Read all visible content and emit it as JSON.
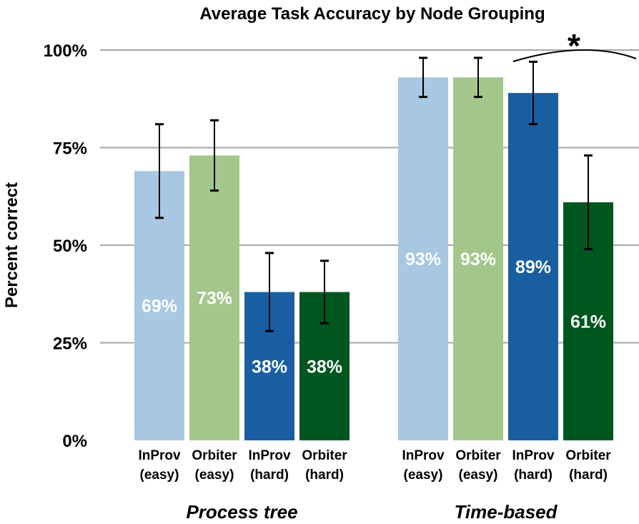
{
  "chart_data": {
    "type": "bar",
    "title": "Average Task Accuracy by Node Grouping",
    "ylabel": "Percent correct",
    "xlabel": "",
    "ylim": [
      0,
      100
    ],
    "yticks": [
      {
        "value": 0,
        "label": "0%"
      },
      {
        "value": 25,
        "label": "25%"
      },
      {
        "value": 50,
        "label": "50%"
      },
      {
        "value": 75,
        "label": "75%"
      },
      {
        "value": 100,
        "label": "100%"
      }
    ],
    "grid": true,
    "legend": "none",
    "groups": [
      {
        "name": "Process tree",
        "bars": [
          {
            "line1": "InProv",
            "line2": "(easy)",
            "value": 69,
            "label": "69%",
            "err_low": 57,
            "err_high": 81,
            "color": "#a7c7e2"
          },
          {
            "line1": "Orbiter",
            "line2": "(easy)",
            "value": 73,
            "label": "73%",
            "err_low": 64,
            "err_high": 82,
            "color": "#a3c68a"
          },
          {
            "line1": "InProv",
            "line2": "(hard)",
            "value": 38,
            "label": "38%",
            "err_low": 28,
            "err_high": 48,
            "color": "#1a5ea2"
          },
          {
            "line1": "Orbiter",
            "line2": "(hard)",
            "value": 38,
            "label": "38%",
            "err_low": 30,
            "err_high": 46,
            "color": "#00561f"
          }
        ]
      },
      {
        "name": "Time-based",
        "bars": [
          {
            "line1": "InProv",
            "line2": "(easy)",
            "value": 93,
            "label": "93%",
            "err_low": 88,
            "err_high": 98,
            "color": "#a7c7e2"
          },
          {
            "line1": "Orbiter",
            "line2": "(easy)",
            "value": 93,
            "label": "93%",
            "err_low": 88,
            "err_high": 98,
            "color": "#a3c68a"
          },
          {
            "line1": "InProv",
            "line2": "(hard)",
            "value": 89,
            "label": "89%",
            "err_low": 81,
            "err_high": 97,
            "color": "#1a5ea2"
          },
          {
            "line1": "Orbiter",
            "line2": "(hard)",
            "value": 61,
            "label": "61%",
            "err_low": 49,
            "err_high": 73,
            "color": "#00561f"
          }
        ]
      }
    ],
    "annotation": "*"
  }
}
